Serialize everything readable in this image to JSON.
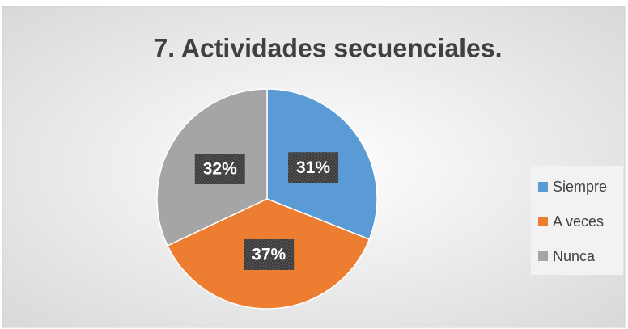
{
  "chart_data": {
    "type": "pie",
    "title": "7. Actividades secuenciales.",
    "categories": [
      "Siempre",
      "A veces",
      "Nunca"
    ],
    "values": [
      31,
      37,
      32
    ],
    "value_labels": [
      "31%",
      "37%",
      "32%"
    ],
    "colors": [
      "#5b9bd5",
      "#ed7d31",
      "#a5a5a5"
    ],
    "legend": "right"
  }
}
